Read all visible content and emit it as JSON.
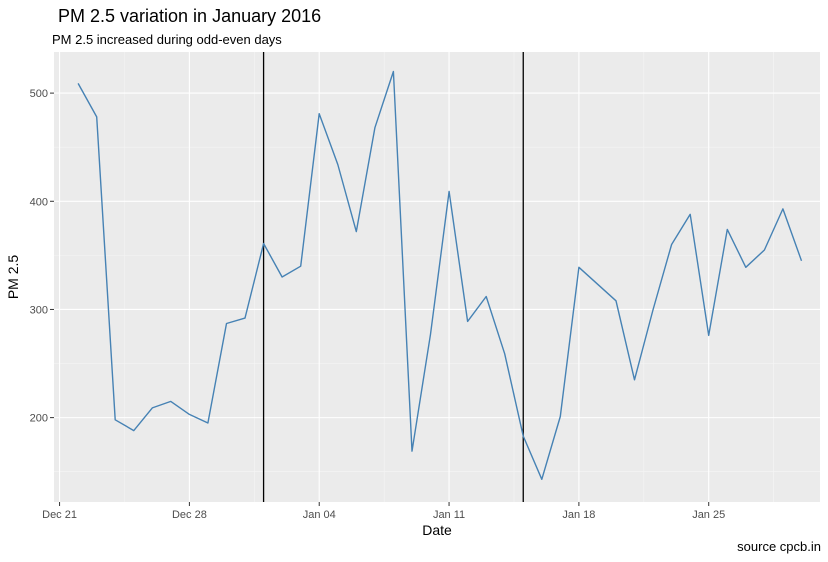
{
  "chart_data": {
    "type": "line",
    "title": "PM 2.5 variation in January 2016",
    "subtitle": "PM 2.5 increased during odd-even days",
    "xlabel": "Date",
    "ylabel": "PM 2.5",
    "caption": "source cpcb.in",
    "x_axis": {
      "type": "date",
      "range": [
        "2015-12-21",
        "2016-01-31"
      ]
    },
    "ylim": [
      122,
      538
    ],
    "x_ticks": [
      {
        "date": "2015-12-21",
        "label": "Dec 21"
      },
      {
        "date": "2015-12-28",
        "label": "Dec 28"
      },
      {
        "date": "2016-01-04",
        "label": "Jan 04"
      },
      {
        "date": "2016-01-11",
        "label": "Jan 11"
      },
      {
        "date": "2016-01-18",
        "label": "Jan 18"
      },
      {
        "date": "2016-01-25",
        "label": "Jan 25"
      }
    ],
    "y_ticks": [
      200,
      300,
      400,
      500
    ],
    "grid": true,
    "background": "#ebebeb",
    "line_color": "#4682b4",
    "reference_lines": [
      "2016-01-01",
      "2016-01-15"
    ],
    "series": [
      {
        "points": [
          {
            "x": "2015-12-22",
            "y": 509
          },
          {
            "x": "2015-12-23",
            "y": 478
          },
          {
            "x": "2015-12-24",
            "y": 198
          },
          {
            "x": "2015-12-25",
            "y": 188
          },
          {
            "x": "2015-12-26",
            "y": 209
          },
          {
            "x": "2015-12-27",
            "y": 215
          },
          {
            "x": "2015-12-28",
            "y": 203
          },
          {
            "x": "2015-12-29",
            "y": 195
          },
          {
            "x": "2015-12-30",
            "y": 287
          },
          {
            "x": "2015-12-31",
            "y": 292
          },
          {
            "x": "2016-01-01",
            "y": 361
          },
          {
            "x": "2016-01-02",
            "y": 330
          },
          {
            "x": "2016-01-03",
            "y": 340
          },
          {
            "x": "2016-01-04",
            "y": 481
          },
          {
            "x": "2016-01-05",
            "y": 434
          },
          {
            "x": "2016-01-06",
            "y": 372
          },
          {
            "x": "2016-01-07",
            "y": 468
          },
          {
            "x": "2016-01-08",
            "y": 520
          },
          {
            "x": "2016-01-09",
            "y": 169
          },
          {
            "x": "2016-01-10",
            "y": 277
          },
          {
            "x": "2016-01-11",
            "y": 409
          },
          {
            "x": "2016-01-12",
            "y": 289
          },
          {
            "x": "2016-01-13",
            "y": 312
          },
          {
            "x": "2016-01-14",
            "y": 259
          },
          {
            "x": "2016-01-15",
            "y": 183
          },
          {
            "x": "2016-01-16",
            "y": 143
          },
          {
            "x": "2016-01-17",
            "y": 201
          },
          {
            "x": "2016-01-18",
            "y": 339
          },
          {
            "x": "2016-01-20",
            "y": 308
          },
          {
            "x": "2016-01-21",
            "y": 235
          },
          {
            "x": "2016-01-22",
            "y": 300
          },
          {
            "x": "2016-01-23",
            "y": 360
          },
          {
            "x": "2016-01-24",
            "y": 388
          },
          {
            "x": "2016-01-25",
            "y": 276
          },
          {
            "x": "2016-01-26",
            "y": 374
          },
          {
            "x": "2016-01-27",
            "y": 339
          },
          {
            "x": "2016-01-28",
            "y": 355
          },
          {
            "x": "2016-01-29",
            "y": 393
          },
          {
            "x": "2016-01-30",
            "y": 345
          }
        ]
      }
    ]
  }
}
